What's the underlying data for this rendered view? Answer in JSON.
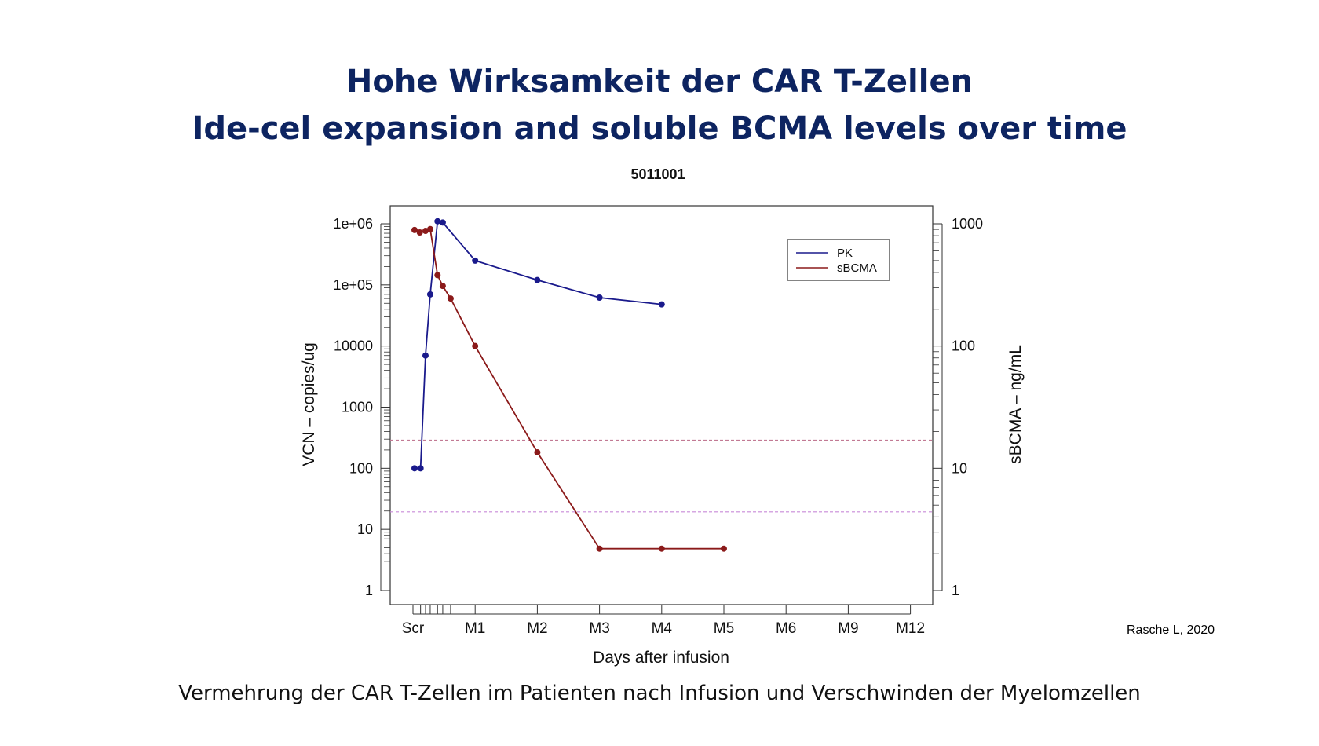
{
  "slide": {
    "title_line1": "Hohe Wirksamkeit der CAR T-Zellen",
    "title_line2": "Ide-cel expansion and soluble BCMA levels over time",
    "citation": "Rasche L, 2020",
    "footer_caption": "Vermehrung der CAR T-Zellen im Patienten nach Infusion und Verschwinden der Myelomzellen"
  },
  "chart_data": {
    "type": "line",
    "title": "5011001",
    "xlabel": "Days after infusion",
    "ylabel_left": "VCN – copies/ug",
    "ylabel_right": "sBCMA – ng/mL",
    "y_left_scale": "log",
    "y_right_scale": "log",
    "y_left_range": [
      1,
      1000000
    ],
    "y_right_range": [
      1,
      1000
    ],
    "y_left_ticks": [
      {
        "value": 1,
        "label": "1"
      },
      {
        "value": 10,
        "label": "10"
      },
      {
        "value": 100,
        "label": "100"
      },
      {
        "value": 1000,
        "label": "1000"
      },
      {
        "value": 10000,
        "label": "10000"
      },
      {
        "value": 100000,
        "label": "1e+05"
      },
      {
        "value": 1000000,
        "label": "1e+06"
      }
    ],
    "y_right_ticks": [
      {
        "value": 1,
        "label": "1"
      },
      {
        "value": 10,
        "label": "10"
      },
      {
        "value": 100,
        "label": "100"
      },
      {
        "value": 1000,
        "label": "1000"
      }
    ],
    "x_ticks": [
      "Scr",
      "M1",
      "M2",
      "M3",
      "M4",
      "M5",
      "M6",
      "M9",
      "M12"
    ],
    "x_minor_ticks": [
      0.23,
      0.42,
      0.6,
      0.88,
      1.08,
      1.38
    ],
    "legend_position": "top-right",
    "grid": false,
    "reference_lines": [
      {
        "axis": "right",
        "value": 17,
        "color": "#c27a94"
      },
      {
        "axis": "right",
        "value": 4.4,
        "color": "#c88ad8"
      }
    ],
    "series": [
      {
        "name": "PK",
        "axis": "left",
        "color": "#1a1a8c",
        "points": [
          {
            "x": 0.0,
            "y": 100
          },
          {
            "x": 0.23,
            "y": 100
          },
          {
            "x": 0.42,
            "y": 7000
          },
          {
            "x": 0.6,
            "y": 70000
          },
          {
            "x": 0.88,
            "y": 1100000
          },
          {
            "x": 1.08,
            "y": 1050000
          },
          {
            "x": 2.0,
            "y": 250000
          },
          {
            "x": 3.0,
            "y": 120000
          },
          {
            "x": 4.0,
            "y": 62000
          },
          {
            "x": 5.0,
            "y": 48000
          }
        ]
      },
      {
        "name": "sBCMA",
        "axis": "right",
        "color": "#8b1a1a",
        "points": [
          {
            "x": 0.0,
            "y": 890
          },
          {
            "x": 0.2,
            "y": 850
          },
          {
            "x": 0.42,
            "y": 875
          },
          {
            "x": 0.6,
            "y": 905
          },
          {
            "x": 0.88,
            "y": 380
          },
          {
            "x": 1.08,
            "y": 310
          },
          {
            "x": 1.38,
            "y": 245
          },
          {
            "x": 2.0,
            "y": 100
          },
          {
            "x": 3.0,
            "y": 13.5
          },
          {
            "x": 4.0,
            "y": 2.2
          },
          {
            "x": 5.0,
            "y": 2.2
          },
          {
            "x": 6.0,
            "y": 2.2
          }
        ]
      }
    ]
  }
}
